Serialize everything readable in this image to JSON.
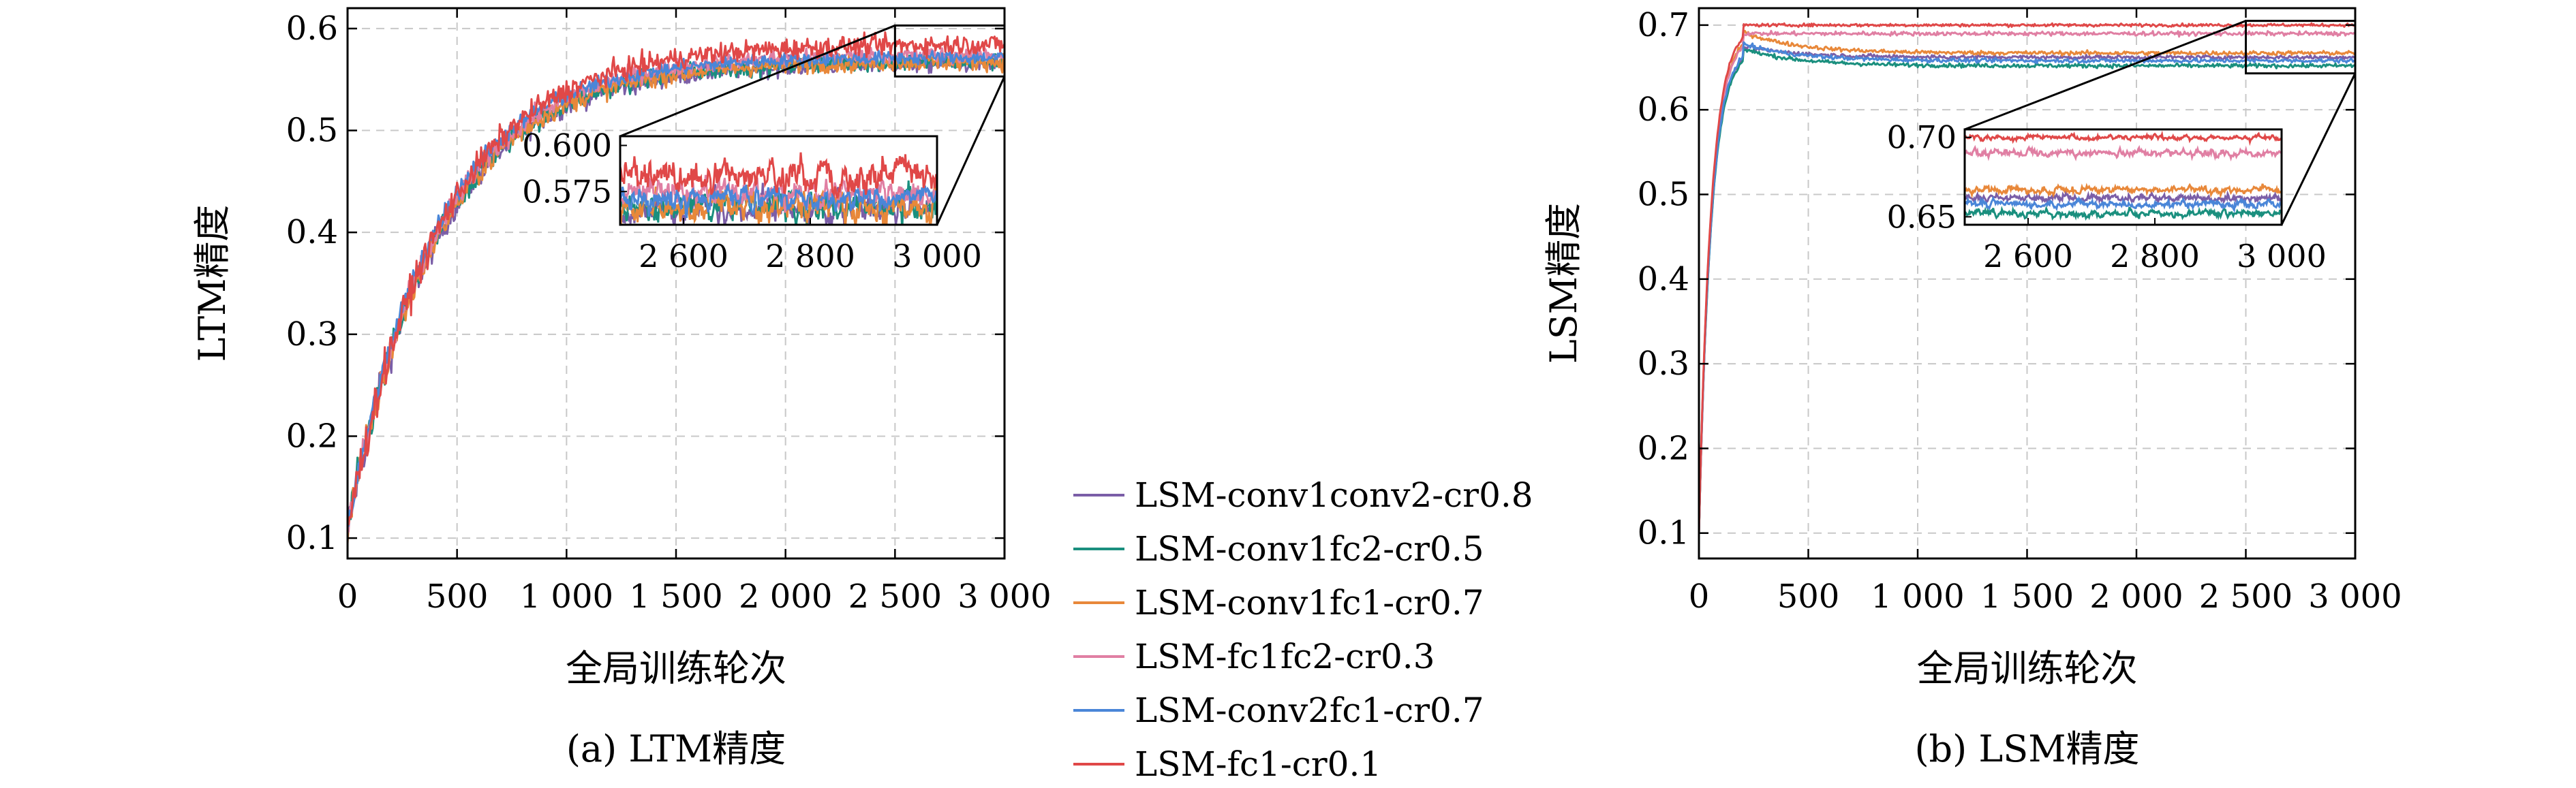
{
  "chart_data": [
    {
      "type": "line",
      "caption": "(a) LTM精度",
      "xlabel": "全局训练轮次",
      "ylabel": "LTM精度",
      "xlim": [
        0,
        3000
      ],
      "ylim": [
        0.08,
        0.62
      ],
      "xticks": [
        0,
        500,
        1000,
        1500,
        2000,
        2500,
        3000
      ],
      "xtick_labels": [
        "0",
        "500",
        "1 000",
        "1 500",
        "2 000",
        "2 500",
        "3 000"
      ],
      "yticks": [
        0.1,
        0.2,
        0.3,
        0.4,
        0.5,
        0.6
      ],
      "ytick_labels": [
        "0.1",
        "0.2",
        "0.3",
        "0.4",
        "0.5",
        "0.6"
      ],
      "grid": true,
      "series": [
        {
          "name": "LSM-conv1conv2-cr0.8",
          "color": "#7b5ea7",
          "start": 0.11,
          "final": 0.566,
          "tau": 420,
          "noise": 0.009
        },
        {
          "name": "LSM-conv1fc2-cr0.5",
          "color": "#1a8f7e",
          "start": 0.11,
          "final": 0.568,
          "tau": 420,
          "noise": 0.009
        },
        {
          "name": "LSM-conv1fc1-cr0.7",
          "color": "#e8883a",
          "start": 0.11,
          "final": 0.568,
          "tau": 420,
          "noise": 0.009
        },
        {
          "name": "LSM-fc1fc2-cr0.3",
          "color": "#e07fa3",
          "start": 0.11,
          "final": 0.575,
          "tau": 420,
          "noise": 0.008
        },
        {
          "name": "LSM-conv2fc1-cr0.7",
          "color": "#4a86d8",
          "start": 0.11,
          "final": 0.572,
          "tau": 400,
          "noise": 0.007
        },
        {
          "name": "LSM-fc1-cr0.1",
          "color": "#e04848",
          "start": 0.11,
          "final": 0.585,
          "tau": 430,
          "noise": 0.01
        }
      ],
      "inset": {
        "xlim": [
          2500,
          3000
        ],
        "ylim": [
          0.557,
          0.605
        ],
        "xticks": [
          2600,
          2800,
          3000
        ],
        "xtick_labels": [
          "2 600",
          "2 800",
          "3 000"
        ],
        "yticks": [
          0.575,
          0.6
        ],
        "ytick_labels": [
          "0.575",
          "0.600"
        ],
        "zoom_box": {
          "x": [
            2500,
            3000
          ],
          "y": [
            0.553,
            0.603
          ]
        }
      }
    },
    {
      "type": "line",
      "caption": "(b) LSM精度",
      "xlabel": "全局训练轮次",
      "ylabel": "LSM精度",
      "xlim": [
        0,
        3000
      ],
      "ylim": [
        0.07,
        0.72
      ],
      "xticks": [
        0,
        500,
        1000,
        1500,
        2000,
        2500,
        3000
      ],
      "xtick_labels": [
        "0",
        "500",
        "1 000",
        "1 500",
        "2 000",
        "2 500",
        "3 000"
      ],
      "yticks": [
        0.1,
        0.2,
        0.3,
        0.4,
        0.5,
        0.6,
        0.7
      ],
      "ytick_labels": [
        "0.1",
        "0.2",
        "0.3",
        "0.4",
        "0.5",
        "0.6",
        "0.7"
      ],
      "grid": true,
      "series": [
        {
          "name": "LSM-conv1conv2-cr0.8",
          "color": "#7b5ea7",
          "start": 0.1,
          "peak": 0.675,
          "final": 0.662,
          "noise": 0.0025
        },
        {
          "name": "LSM-conv1fc2-cr0.5",
          "color": "#1a8f7e",
          "start": 0.1,
          "peak": 0.672,
          "final": 0.652,
          "noise": 0.0025
        },
        {
          "name": "LSM-conv1fc1-cr0.7",
          "color": "#e8883a",
          "start": 0.1,
          "peak": 0.692,
          "final": 0.667,
          "noise": 0.0025
        },
        {
          "name": "LSM-fc1fc2-cr0.3",
          "color": "#e07fa3",
          "start": 0.1,
          "peak": 0.69,
          "final": 0.69,
          "noise": 0.0025
        },
        {
          "name": "LSM-conv2fc1-cr0.7",
          "color": "#4a86d8",
          "start": 0.1,
          "peak": 0.678,
          "final": 0.658,
          "noise": 0.0025
        },
        {
          "name": "LSM-fc1-cr0.1",
          "color": "#e04848",
          "start": 0.1,
          "peak": 0.7,
          "final": 0.7,
          "noise": 0.0018
        }
      ],
      "inset": {
        "xlim": [
          2500,
          3000
        ],
        "ylim": [
          0.645,
          0.705
        ],
        "xticks": [
          2600,
          2800,
          3000
        ],
        "xtick_labels": [
          "2 600",
          "2 800",
          "3 000"
        ],
        "yticks": [
          0.65,
          0.7
        ],
        "ytick_labels": [
          "0.65",
          "0.70"
        ],
        "zoom_box": {
          "x": [
            2500,
            3000
          ],
          "y": [
            0.643,
            0.705
          ]
        }
      }
    }
  ],
  "legend": {
    "placement": "center",
    "entries": [
      {
        "label": "LSM-conv1conv2-cr0.8",
        "color": "#7b5ea7"
      },
      {
        "label": "LSM-conv1fc2-cr0.5",
        "color": "#1a8f7e"
      },
      {
        "label": "LSM-conv1fc1-cr0.7",
        "color": "#e8883a"
      },
      {
        "label": "LSM-fc1fc2-cr0.3",
        "color": "#e07fa3"
      },
      {
        "label": "LSM-conv2fc1-cr0.7",
        "color": "#4a86d8"
      },
      {
        "label": "LSM-fc1-cr0.1",
        "color": "#e04848"
      }
    ]
  }
}
